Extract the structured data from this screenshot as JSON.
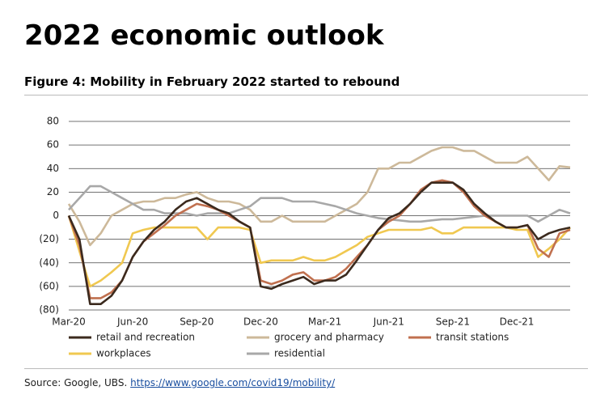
{
  "page": {
    "heading": "2022 economic outlook",
    "source": "Source: Google, UBS.",
    "link": "https://www.google.com/covid19/mobility/"
  },
  "chart_data": {
    "type": "line",
    "title": "Figure 4: Mobility in February 2022 started to rebound",
    "categories": [
      "Mar-20",
      null,
      null,
      null,
      null,
      null,
      "Jun-20",
      null,
      null,
      null,
      null,
      null,
      "Sep-20",
      null,
      null,
      null,
      null,
      null,
      "Dec-20",
      null,
      null,
      null,
      null,
      null,
      "Mar-21",
      null,
      null,
      null,
      null,
      null,
      "Jun-21",
      null,
      null,
      null,
      null,
      null,
      "Sep-21",
      null,
      null,
      null,
      null,
      null,
      "Dec-21",
      null,
      null,
      null,
      null,
      null
    ],
    "series": [
      {
        "name": "retail and recreation",
        "color": "#3b2a1e",
        "values": [
          0,
          -20,
          -75,
          -75,
          -68,
          -55,
          -35,
          -22,
          -12,
          -5,
          5,
          12,
          15,
          10,
          5,
          2,
          -5,
          -10,
          -60,
          -62,
          -58,
          -55,
          -52,
          -58,
          -55,
          -55,
          -50,
          -38,
          -25,
          -12,
          -2,
          2,
          10,
          20,
          28,
          28,
          28,
          22,
          10,
          2,
          -5,
          -10,
          -10,
          -8,
          -20,
          -15,
          -12,
          -10
        ]
      },
      {
        "name": "grocery and pharmacy",
        "color": "#cdb99a",
        "values": [
          10,
          -5,
          -25,
          -15,
          0,
          5,
          10,
          12,
          12,
          15,
          15,
          18,
          20,
          15,
          12,
          12,
          10,
          5,
          -5,
          -5,
          0,
          -5,
          -5,
          -5,
          -5,
          0,
          5,
          10,
          20,
          40,
          40,
          45,
          45,
          50,
          55,
          58,
          58,
          55,
          55,
          50,
          45,
          45,
          45,
          50,
          40,
          30,
          42,
          41
        ]
      },
      {
        "name": "transit stations",
        "color": "#c0704f",
        "values": [
          0,
          -25,
          -70,
          -70,
          -65,
          -55,
          -35,
          -22,
          -15,
          -8,
          0,
          5,
          10,
          8,
          5,
          0,
          -5,
          -10,
          -55,
          -58,
          -55,
          -50,
          -48,
          -55,
          -55,
          -52,
          -45,
          -35,
          -25,
          -12,
          -5,
          0,
          10,
          22,
          28,
          30,
          28,
          20,
          8,
          0,
          -5,
          -10,
          -10,
          -8,
          -28,
          -35,
          -15,
          -12
        ]
      },
      {
        "name": "workplaces",
        "color": "#f0c850",
        "values": [
          0,
          -30,
          -60,
          -55,
          -48,
          -40,
          -15,
          -12,
          -10,
          -10,
          -10,
          -10,
          -10,
          -20,
          -10,
          -10,
          -10,
          -12,
          -40,
          -38,
          -38,
          -38,
          -35,
          -38,
          -38,
          -35,
          -30,
          -25,
          -18,
          -15,
          -12,
          -12,
          -12,
          -12,
          -10,
          -15,
          -15,
          -10,
          -10,
          -10,
          -10,
          -10,
          -12,
          -12,
          -35,
          -28,
          -20,
          -10
        ]
      },
      {
        "name": "residential",
        "color": "#a8a8a8",
        "values": [
          5,
          15,
          25,
          25,
          20,
          15,
          10,
          5,
          5,
          2,
          2,
          2,
          0,
          2,
          2,
          2,
          5,
          8,
          15,
          15,
          15,
          12,
          12,
          12,
          10,
          8,
          5,
          2,
          0,
          -2,
          -3,
          -4,
          -5,
          -5,
          -4,
          -3,
          -3,
          -2,
          -1,
          0,
          0,
          0,
          0,
          0,
          -5,
          0,
          5,
          2
        ]
      }
    ],
    "ylim": [
      -80,
      80
    ],
    "yticks": [
      {
        "value": -80,
        "label": "(80)"
      },
      {
        "value": -60,
        "label": "(60)"
      },
      {
        "value": -40,
        "label": "(40)"
      },
      {
        "value": -20,
        "label": "(20)"
      },
      0,
      20,
      40,
      60,
      80
    ],
    "grid": true
  }
}
